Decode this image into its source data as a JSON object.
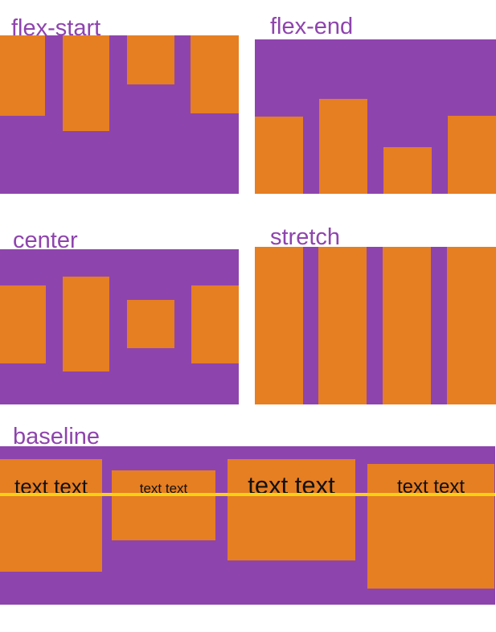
{
  "figure": {
    "description": "CSS flexbox align-items values illustration"
  },
  "panels": [
    {
      "label": "flex-start"
    },
    {
      "label": "flex-end"
    },
    {
      "label": "center"
    },
    {
      "label": "stretch"
    },
    {
      "label": "baseline"
    }
  ],
  "baseline_items": [
    {
      "text": "text text"
    },
    {
      "text": "text text"
    },
    {
      "text": "text text"
    },
    {
      "text": "text text"
    }
  ],
  "colors": {
    "container_purple": "#8E44AD",
    "item_orange": "#E67E22",
    "label_purple": "#8E44AD",
    "baseline_yellow": "#F5D211",
    "item_text": "#111111",
    "background": "#FFFFFF"
  }
}
